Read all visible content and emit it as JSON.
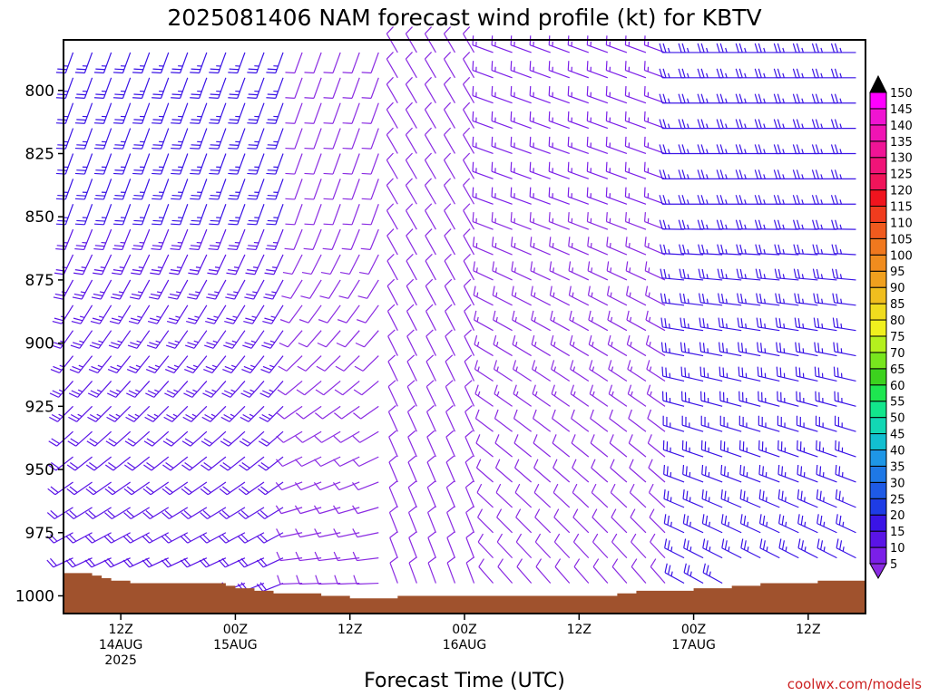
{
  "chart_data": {
    "type": "wind-barb-profile",
    "title": "2025081406 NAM forecast wind profile (kt) for KBTV",
    "xlabel": "Forecast Time (UTC)",
    "credit": "coolwx.com/models",
    "credit_color": "#cc2222",
    "ground_color": "#a0522d",
    "y_axis": {
      "ticks": [
        800,
        825,
        850,
        875,
        900,
        925,
        950,
        975,
        1000
      ],
      "range_hpa": [
        780,
        1007
      ]
    },
    "x_axis": {
      "range_hours": [
        0,
        84
      ],
      "ticks": [
        {
          "hour": 6,
          "lines": [
            "12Z",
            "14AUG",
            "2025"
          ]
        },
        {
          "hour": 18,
          "lines": [
            "00Z",
            "15AUG"
          ]
        },
        {
          "hour": 30,
          "lines": [
            "12Z"
          ]
        },
        {
          "hour": 42,
          "lines": [
            "00Z",
            "16AUG"
          ]
        },
        {
          "hour": 54,
          "lines": [
            "12Z"
          ]
        },
        {
          "hour": 66,
          "lines": [
            "00Z",
            "17AUG"
          ]
        },
        {
          "hour": 78,
          "lines": [
            "12Z"
          ]
        }
      ]
    },
    "surface_pressure_hpa": [
      [
        0,
        991
      ],
      [
        2,
        991
      ],
      [
        3,
        992
      ],
      [
        4,
        993
      ],
      [
        5,
        994
      ],
      [
        6,
        994
      ],
      [
        7,
        995
      ],
      [
        8,
        995
      ],
      [
        10,
        995
      ],
      [
        13,
        995
      ],
      [
        16,
        995
      ],
      [
        17,
        996
      ],
      [
        18,
        997
      ],
      [
        19,
        997
      ],
      [
        20,
        998
      ],
      [
        21,
        998
      ],
      [
        22,
        999
      ],
      [
        25,
        999
      ],
      [
        26,
        999
      ],
      [
        27,
        1000
      ],
      [
        29,
        1000
      ],
      [
        30,
        1001
      ],
      [
        33,
        1001
      ],
      [
        34,
        1001
      ],
      [
        35,
        1000
      ],
      [
        38,
        1000
      ],
      [
        42,
        1000
      ],
      [
        48,
        1000
      ],
      [
        54,
        1000
      ],
      [
        57,
        1000
      ],
      [
        58,
        999
      ],
      [
        60,
        998
      ],
      [
        63,
        998
      ],
      [
        66,
        997
      ],
      [
        68,
        997
      ],
      [
        70,
        996
      ],
      [
        73,
        995
      ],
      [
        75,
        995
      ],
      [
        79,
        994
      ],
      [
        84,
        993
      ]
    ],
    "colorbar": {
      "levels": [
        5,
        10,
        15,
        20,
        25,
        30,
        35,
        40,
        45,
        50,
        55,
        60,
        65,
        70,
        75,
        80,
        85,
        90,
        95,
        100,
        105,
        110,
        115,
        120,
        125,
        130,
        135,
        140,
        145,
        150
      ],
      "colors": [
        "#8a2be2",
        "#7b1fe8",
        "#5a14e6",
        "#3a14e6",
        "#1e3ce6",
        "#1e5ae6",
        "#1e78e6",
        "#1e96e6",
        "#12bfd0",
        "#12d7b4",
        "#12e68c",
        "#1ee650",
        "#3cd21e",
        "#78e61e",
        "#b4f01e",
        "#f0f01e",
        "#f0dc1e",
        "#f0be1e",
        "#f0a01e",
        "#f08c1e",
        "#f0781e",
        "#f05a1e",
        "#f03c1e",
        "#f0141e",
        "#f0145a",
        "#f01478",
        "#f01496",
        "#f014b4",
        "#f014d2",
        "#ff00ff"
      ]
    },
    "wind_field": {
      "time_step_hours": 2,
      "pressure_levels_hpa": [
        785,
        795,
        805,
        815,
        825,
        835,
        845,
        855,
        865,
        875,
        885,
        895,
        905,
        915,
        925,
        935,
        945,
        955,
        965,
        975,
        985,
        995
      ],
      "phases": [
        {
          "from_hour": 0,
          "to_hour": 24,
          "dir_deg": 200,
          "speed_kt": 25,
          "dir_low_deg": 250,
          "speed_low_kt": 20
        },
        {
          "from_hour": 24,
          "to_hour": 34,
          "dir_deg": 200,
          "speed_kt": 10,
          "dir_low_deg": 270,
          "speed_low_kt": 10
        },
        {
          "from_hour": 34,
          "to_hour": 44,
          "dir_deg": 330,
          "speed_kt": 10,
          "dir_low_deg": 340,
          "speed_low_kt": 10
        },
        {
          "from_hour": 44,
          "to_hour": 64,
          "dir_deg": 290,
          "speed_kt": 15,
          "dir_low_deg": 320,
          "speed_low_kt": 10
        },
        {
          "from_hour": 64,
          "to_hour": 84,
          "dir_deg": 270,
          "speed_kt": 25,
          "dir_low_deg": 300,
          "speed_low_kt": 25
        }
      ]
    }
  }
}
